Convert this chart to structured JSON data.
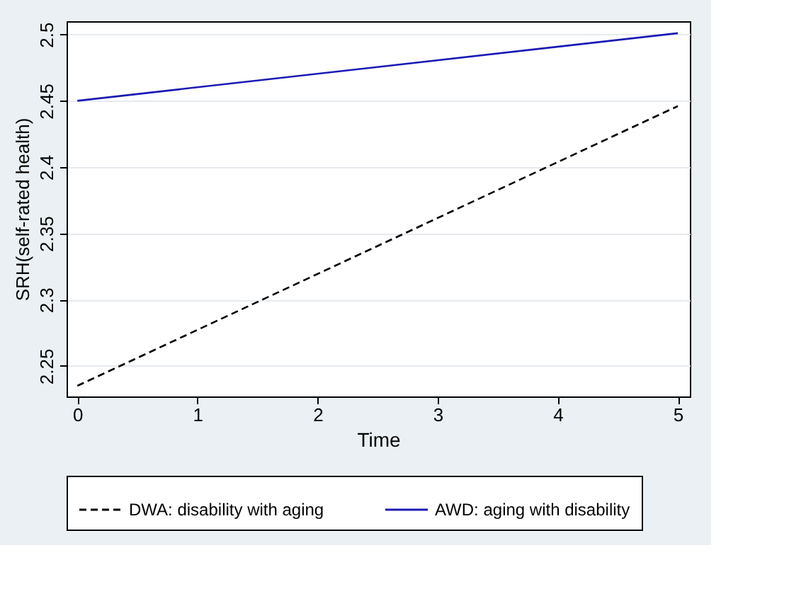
{
  "chart_data": {
    "type": "line",
    "xlabel": "Time",
    "ylabel": "SRH(self-rated health)",
    "x": [
      0,
      5
    ],
    "series": [
      {
        "name": "DWA: disability with aging",
        "color": "#000000",
        "values": [
          2.235,
          2.446
        ],
        "line_style": "dashed"
      },
      {
        "name": "AWD: aging with disability",
        "color": "#1a1ab4",
        "values": [
          2.45,
          2.501
        ],
        "line_style": "solid"
      }
    ],
    "xlim": [
      -0.09,
      5.1
    ],
    "xticks": [
      0,
      1,
      2,
      3,
      4,
      5
    ],
    "ylim": [
      2.227,
      2.51
    ],
    "yticks": [
      2.25,
      2.3,
      2.35,
      2.4,
      2.45,
      2.5
    ],
    "grid": "y",
    "legend": "bottom",
    "marker": "none"
  }
}
